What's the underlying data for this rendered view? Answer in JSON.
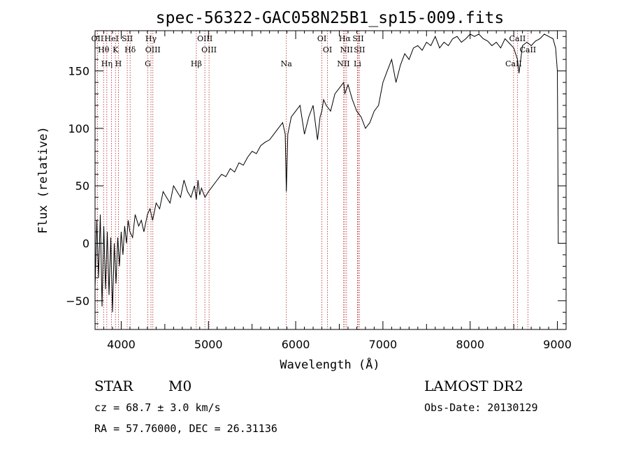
{
  "chart_data": {
    "type": "line",
    "title": "spec-56322-GAC058N25B1_sp15-009.fits",
    "xlabel": "Wavelength (Å)",
    "ylabel": "Flux (relative)",
    "xlim": [
      3700,
      9100
    ],
    "ylim": [
      -75,
      185
    ],
    "xticks": [
      4000,
      5000,
      6000,
      7000,
      8000,
      9000
    ],
    "yticks": [
      -50,
      0,
      50,
      100,
      150
    ],
    "grid": false,
    "series": [
      {
        "x": [
          3700,
          3720,
          3740,
          3760,
          3780,
          3800,
          3820,
          3840,
          3860,
          3880,
          3900,
          3920,
          3940,
          3960,
          3980,
          4000,
          4020,
          4040,
          4060,
          4080,
          4100,
          4130,
          4160,
          4200,
          4230,
          4260,
          4300,
          4330,
          4360,
          4400,
          4440,
          4480,
          4520,
          4560,
          4600,
          4640,
          4680,
          4720,
          4760,
          4800,
          4840,
          4861,
          4880,
          4900,
          4920,
          4960,
          5000,
          5050,
          5100,
          5150,
          5200,
          5250,
          5300,
          5350,
          5400,
          5450,
          5500,
          5550,
          5600,
          5650,
          5700,
          5750,
          5800,
          5850,
          5880,
          5893,
          5910,
          5950,
          6000,
          6050,
          6100,
          6150,
          6200,
          6250,
          6280,
          6300,
          6320,
          6350,
          6400,
          6450,
          6500,
          6550,
          6563,
          6600,
          6650,
          6700,
          6750,
          6800,
          6850,
          6900,
          6950,
          7000,
          7050,
          7100,
          7150,
          7200,
          7250,
          7300,
          7350,
          7400,
          7450,
          7500,
          7550,
          7600,
          7650,
          7700,
          7750,
          7800,
          7850,
          7900,
          7950,
          8000,
          8050,
          8100,
          8150,
          8200,
          8250,
          8300,
          8350,
          8400,
          8450,
          8500,
          8542,
          8560,
          8600,
          8650,
          8700,
          8750,
          8800,
          8850,
          8900,
          8950,
          8980,
          9000,
          9005,
          9010
        ],
        "y": [
          -40,
          20,
          -30,
          25,
          -55,
          15,
          -40,
          10,
          -45,
          5,
          -60,
          0,
          -35,
          5,
          -20,
          10,
          -10,
          15,
          0,
          20,
          10,
          5,
          25,
          15,
          20,
          10,
          25,
          30,
          20,
          35,
          30,
          45,
          40,
          35,
          50,
          45,
          40,
          55,
          45,
          40,
          50,
          38,
          55,
          42,
          48,
          40,
          45,
          50,
          55,
          60,
          58,
          65,
          62,
          70,
          68,
          75,
          80,
          78,
          85,
          88,
          90,
          95,
          100,
          105,
          95,
          45,
          95,
          110,
          115,
          120,
          95,
          110,
          120,
          90,
          110,
          115,
          125,
          120,
          115,
          130,
          135,
          140,
          130,
          138,
          125,
          115,
          110,
          100,
          105,
          115,
          120,
          140,
          150,
          160,
          140,
          155,
          165,
          160,
          170,
          172,
          168,
          175,
          172,
          180,
          170,
          175,
          172,
          178,
          180,
          175,
          178,
          182,
          180,
          182,
          178,
          176,
          172,
          175,
          170,
          178,
          174,
          170,
          160,
          148,
          172,
          175,
          172,
          176,
          178,
          182,
          180,
          178,
          170,
          150,
          90,
          0
        ]
      }
    ],
    "lines": [
      {
        "name": "OII",
        "x": 3727
      },
      {
        "name": "Hθ",
        "x": 3798
      },
      {
        "name": "Hη",
        "x": 3835
      },
      {
        "name": "HeI",
        "x": 3889
      },
      {
        "name": "K",
        "x": 3934
      },
      {
        "name": "H",
        "x": 3968
      },
      {
        "name": "SII",
        "x": 4069
      },
      {
        "name": "Hδ",
        "x": 4102
      },
      {
        "name": "G",
        "x": 4305
      },
      {
        "name": "Hγ",
        "x": 4341
      },
      {
        "name": "OIII",
        "x": 4363
      },
      {
        "name": "Hβ",
        "x": 4861
      },
      {
        "name": "OIII",
        "x": 4959
      },
      {
        "name": "OIII",
        "x": 5007
      },
      {
        "name": "Na",
        "x": 5893
      },
      {
        "name": "OI",
        "x": 6300
      },
      {
        "name": "OI",
        "x": 6364
      },
      {
        "name": "NII",
        "x": 6548
      },
      {
        "name": "Hα",
        "x": 6563
      },
      {
        "name": "NII",
        "x": 6583
      },
      {
        "name": "Li",
        "x": 6708
      },
      {
        "name": "SII",
        "x": 6716
      },
      {
        "name": "SII",
        "x": 6731
      },
      {
        "name": "CaII",
        "x": 8498
      },
      {
        "name": "CaII",
        "x": 8542
      },
      {
        "name": "CaII",
        "x": 8662
      }
    ]
  },
  "info": {
    "object_class": "STAR",
    "subclass": "M0",
    "survey": "LAMOST DR2",
    "cz": "cz = 68.7 ± 3.0 km/s",
    "obs_date": "Obs-Date: 20130129",
    "coords": "RA =  57.76000, DEC =  26.31136"
  }
}
